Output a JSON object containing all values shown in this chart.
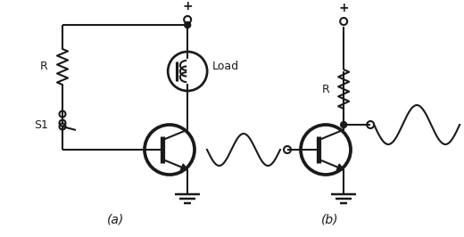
{
  "background_color": "#ffffff",
  "line_color": "#1a1a1a",
  "line_width": 1.5,
  "label_a": "(a)",
  "label_b": "(b)",
  "label_R_a": "R",
  "label_R_b": "R",
  "label_S1": "S1",
  "label_Load": "Load",
  "label_plus_a": "+",
  "label_plus_b": "+",
  "figsize": [
    5.2,
    2.66
  ],
  "dpi": 100
}
